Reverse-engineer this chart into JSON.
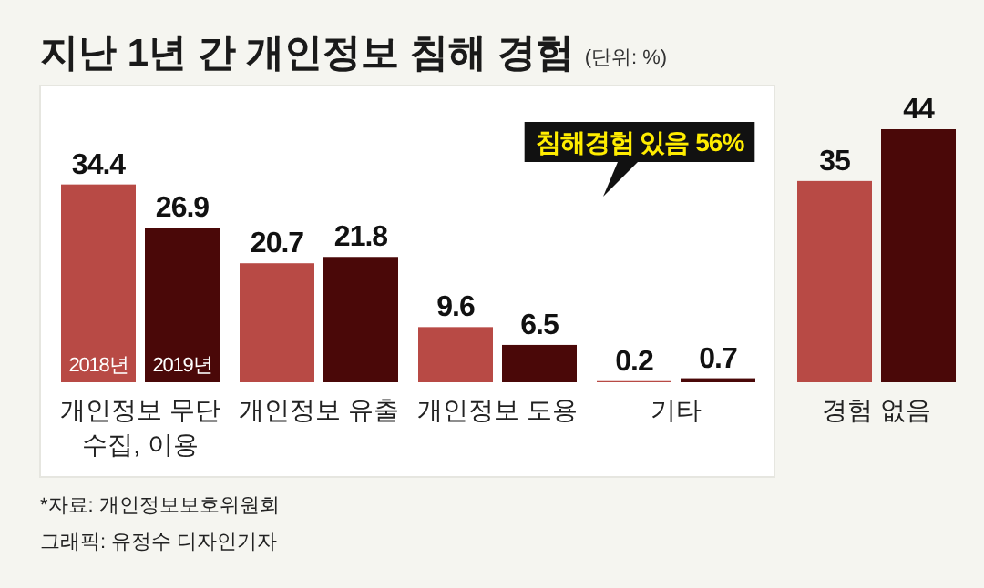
{
  "chart_data": {
    "type": "bar",
    "title": "지난 1년 간 개인정보 침해 경험",
    "subtitle": "(단위: %)",
    "categories": [
      "개인정보 무단 수집, 이용",
      "개인정보 유출",
      "개인정보 도용",
      "기타",
      "경험 없음"
    ],
    "series": [
      {
        "name": "2018년",
        "color": "#b84a45",
        "values": [
          34.4,
          20.7,
          9.6,
          0.2,
          35
        ]
      },
      {
        "name": "2019년",
        "color": "#4a0808",
        "values": [
          26.9,
          21.8,
          6.5,
          0.7,
          44
        ]
      }
    ],
    "data_labels": true,
    "annotations": [
      "침해경험 있음 56%",
      "*자료: 개인정보보호위원회",
      "그래픽: 유정수 디자인기자"
    ]
  }
}
